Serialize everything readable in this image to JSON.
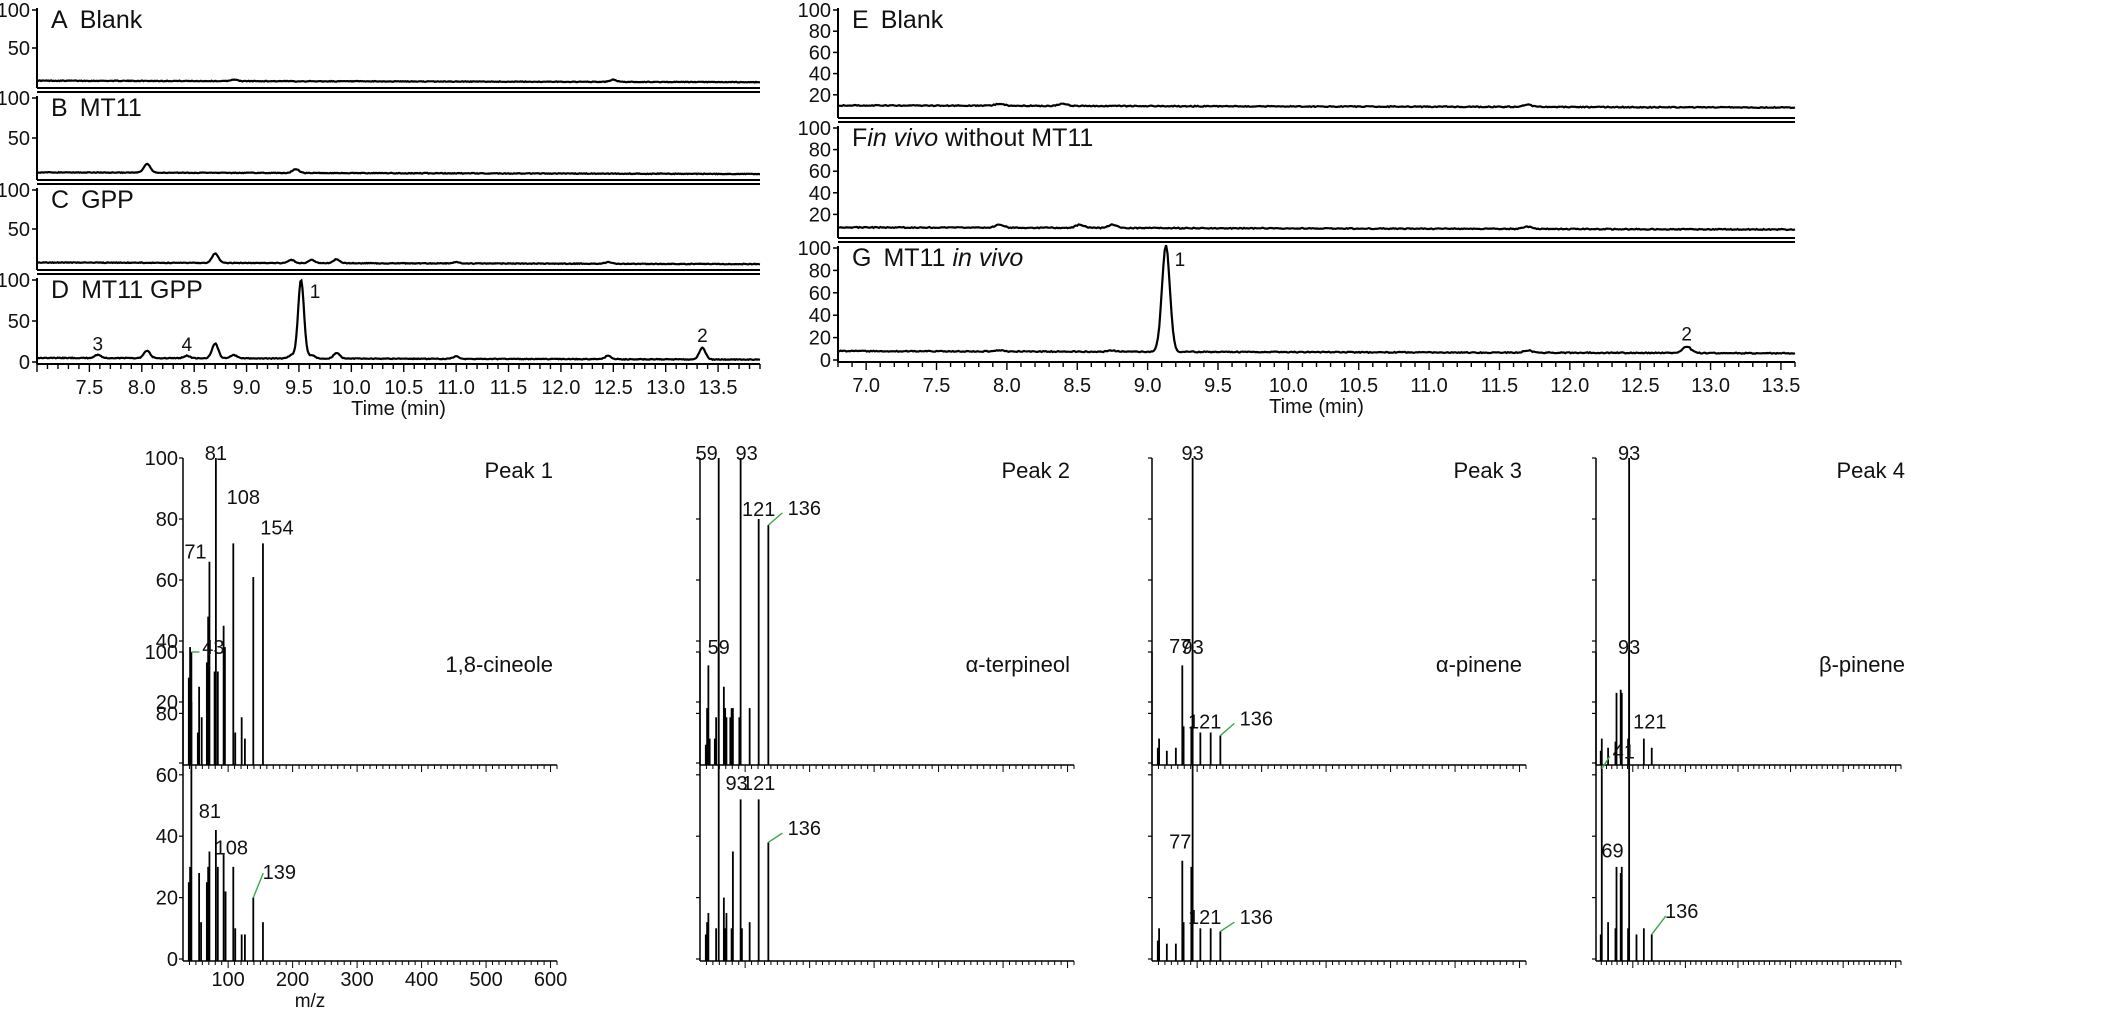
{
  "chart_data": [
    {
      "type": "line",
      "group": "chromatograms-left",
      "xlabel": "Time (min)",
      "xlim": [
        7.0,
        13.9
      ],
      "x_ticks": [
        "7.5",
        "8.0",
        "8.5",
        "9.0",
        "9.5",
        "10.0",
        "10.5",
        "11.0",
        "11.5",
        "12.0",
        "12.5",
        "13.0",
        "13.5"
      ],
      "panels": [
        {
          "letter": "A",
          "label": "Blank",
          "ylim": [
            0,
            100
          ],
          "y_ticks": [
            "100",
            "50"
          ],
          "baseline": 5,
          "peaks": [
            [
              8.88,
              2
            ],
            [
              12.5,
              3
            ]
          ]
        },
        {
          "letter": "B",
          "label": "MT11",
          "ylim": [
            0,
            100
          ],
          "y_ticks": [
            "100",
            "50"
          ],
          "baseline": 5,
          "peaks": [
            [
              8.05,
              11
            ],
            [
              9.47,
              5
            ]
          ]
        },
        {
          "letter": "C",
          "label": "GPP",
          "ylim": [
            0,
            100
          ],
          "y_ticks": [
            "100",
            "50"
          ],
          "baseline": 5,
          "peaks": [
            [
              8.7,
              12
            ],
            [
              9.43,
              4
            ],
            [
              9.62,
              4
            ],
            [
              9.86,
              5
            ],
            [
              11.0,
              2
            ],
            [
              12.45,
              2
            ]
          ]
        },
        {
          "letter": "D",
          "label": "MT11 GPP",
          "ylim": [
            0,
            100
          ],
          "y_ticks": [
            "100",
            "50",
            "0"
          ],
          "baseline": 3,
          "peaks": [
            [
              7.58,
              4
            ],
            [
              8.05,
              9
            ],
            [
              8.43,
              3
            ],
            [
              8.7,
              18
            ],
            [
              8.88,
              4
            ],
            [
              9.43,
              4
            ],
            [
              9.52,
              96
            ],
            [
              9.62,
              4
            ],
            [
              9.86,
              7
            ],
            [
              11.0,
              3
            ],
            [
              12.45,
              4
            ],
            [
              13.35,
              14
            ]
          ],
          "annotations": [
            {
              "text": "3",
              "x": 7.58
            },
            {
              "text": "4",
              "x": 8.43
            },
            {
              "text": "1",
              "x": 9.52
            },
            {
              "text": "2",
              "x": 13.35
            }
          ]
        }
      ]
    },
    {
      "type": "line",
      "group": "chromatograms-right",
      "xlabel": "Time (min)",
      "xlim": [
        6.8,
        13.6
      ],
      "x_ticks": [
        "7.0",
        "7.5",
        "8.0",
        "8.5",
        "9.0",
        "9.5",
        "10.0",
        "10.5",
        "11.0",
        "11.5",
        "12.0",
        "12.5",
        "13.0",
        "13.5"
      ],
      "panels": [
        {
          "letter": "E",
          "label": "Blank",
          "italic": "",
          "label_after": "",
          "ylim": [
            0,
            100
          ],
          "y_ticks": [
            "100",
            "80",
            "60",
            "40",
            "20"
          ],
          "baseline": 8,
          "peaks": [
            [
              7.95,
              2
            ],
            [
              8.4,
              2
            ],
            [
              11.7,
              2
            ]
          ]
        },
        {
          "letter": "F",
          "label": "",
          "italic": "in vivo",
          "label_after": " without MT11",
          "ylim": [
            0,
            100
          ],
          "y_ticks": [
            "100",
            "80",
            "60",
            "40",
            "20"
          ],
          "baseline": 6,
          "peaks": [
            [
              7.95,
              3
            ],
            [
              8.52,
              3
            ],
            [
              8.75,
              3
            ],
            [
              11.7,
              2
            ]
          ]
        },
        {
          "letter": "G",
          "label": "MT11 ",
          "italic": "in vivo",
          "label_after": "",
          "ylim": [
            0,
            100
          ],
          "y_ticks": [
            "100",
            "80",
            "60",
            "40",
            "20",
            "0"
          ],
          "baseline": 6,
          "peaks": [
            [
              7.95,
              1
            ],
            [
              8.75,
              1
            ],
            [
              9.13,
              95
            ],
            [
              11.7,
              2
            ],
            [
              12.83,
              6
            ]
          ],
          "annotations": [
            {
              "text": "1",
              "x": 9.13
            },
            {
              "text": "2",
              "x": 12.83
            }
          ]
        }
      ]
    },
    {
      "type": "bar",
      "group": "mass-spectra",
      "xlabel": "m/z",
      "xlim": [
        30,
        610
      ],
      "x_ticks": [
        "100",
        "200",
        "300",
        "400",
        "500",
        "600"
      ],
      "ylim": [
        0,
        100
      ],
      "spectra": [
        {
          "name": "Peak 1",
          "row": 0,
          "col": 0,
          "y_ticks": [
            "100",
            "80",
            "60",
            "40",
            "20"
          ],
          "bars": [
            [
              39,
              28
            ],
            [
              41,
              38
            ],
            [
              43,
              20
            ],
            [
              53,
              10
            ],
            [
              55,
              25
            ],
            [
              59,
              15
            ],
            [
              67,
              33
            ],
            [
              69,
              48
            ],
            [
              71,
              66
            ],
            [
              79,
              30
            ],
            [
              81,
              100
            ],
            [
              84,
              30
            ],
            [
              93,
              45
            ],
            [
              95,
              38
            ],
            [
              108,
              72
            ],
            [
              111,
              10
            ],
            [
              121,
              15
            ],
            [
              126,
              8
            ],
            [
              139,
              61
            ],
            [
              154,
              72
            ]
          ],
          "labels": [
            {
              "text": "81",
              "mz": 81
            },
            {
              "text": "71",
              "mz": 71
            },
            {
              "text": "108",
              "mz": 108
            },
            {
              "text": "154",
              "mz": 154
            }
          ]
        },
        {
          "name": "Peak 2",
          "row": 0,
          "col": 1,
          "y_ticks": [],
          "bars": [
            [
              39,
              6
            ],
            [
              41,
              18
            ],
            [
              43,
              32
            ],
            [
              45,
              8
            ],
            [
              53,
              8
            ],
            [
              55,
              15
            ],
            [
              59,
              100
            ],
            [
              67,
              25
            ],
            [
              69,
              18
            ],
            [
              71,
              15
            ],
            [
              77,
              15
            ],
            [
              79,
              18
            ],
            [
              81,
              18
            ],
            [
              91,
              15
            ],
            [
              93,
              100
            ],
            [
              107,
              18
            ],
            [
              121,
              80
            ],
            [
              136,
              78
            ]
          ],
          "labels": [
            {
              "text": "59",
              "mz": 59
            },
            {
              "text": "93",
              "mz": 93
            },
            {
              "text": "121",
              "mz": 121
            },
            {
              "text": "136",
              "mz": 136
            }
          ]
        },
        {
          "name": "Peak 3",
          "row": 0,
          "col": 2,
          "y_ticks": [],
          "bars": [
            [
              39,
              5
            ],
            [
              41,
              8
            ],
            [
              53,
              4
            ],
            [
              67,
              5
            ],
            [
              77,
              32
            ],
            [
              79,
              12
            ],
            [
              91,
              12
            ],
            [
              93,
              100
            ],
            [
              105,
              10
            ],
            [
              121,
              10
            ],
            [
              136,
              9
            ]
          ],
          "labels": [
            {
              "text": "93",
              "mz": 93
            },
            {
              "text": "77",
              "mz": 77
            },
            {
              "text": "121",
              "mz": 121
            },
            {
              "text": "136",
              "mz": 136
            }
          ]
        },
        {
          "name": "Peak 4",
          "row": 0,
          "col": 3,
          "y_ticks": [],
          "bars": [
            [
              39,
              4
            ],
            [
              41,
              8
            ],
            [
              53,
              5
            ],
            [
              67,
              7
            ],
            [
              69,
              23
            ],
            [
              77,
              24
            ],
            [
              79,
              23
            ],
            [
              91,
              8
            ],
            [
              93,
              100
            ],
            [
              121,
              8
            ],
            [
              136,
              5
            ]
          ],
          "labels": [
            {
              "text": "93",
              "mz": 93
            },
            {
              "text": "121",
              "mz": 121
            }
          ]
        },
        {
          "name": "1,8-cineole",
          "row": 1,
          "col": 0,
          "y_ticks": [
            "100",
            "80",
            "60",
            "40",
            "20",
            "0"
          ],
          "bars": [
            [
              39,
              25
            ],
            [
              41,
              30
            ],
            [
              43,
              100
            ],
            [
              55,
              28
            ],
            [
              58,
              12
            ],
            [
              67,
              25
            ],
            [
              69,
              30
            ],
            [
              71,
              35
            ],
            [
              81,
              42
            ],
            [
              84,
              30
            ],
            [
              93,
              34
            ],
            [
              96,
              22
            ],
            [
              108,
              30
            ],
            [
              111,
              10
            ],
            [
              121,
              8
            ],
            [
              126,
              8
            ],
            [
              139,
              20
            ],
            [
              154,
              12
            ]
          ],
          "labels": [
            {
              "text": "43",
              "mz": 43
            },
            {
              "text": "81",
              "mz": 81
            },
            {
              "text": "108",
              "mz": 108
            },
            {
              "text": "139",
              "mz": 139
            }
          ]
        },
        {
          "name": "α-terpineol",
          "row": 1,
          "col": 1,
          "y_ticks": [],
          "bars": [
            [
              39,
              8
            ],
            [
              41,
              12
            ],
            [
              43,
              15
            ],
            [
              55,
              10
            ],
            [
              59,
              100
            ],
            [
              67,
              20
            ],
            [
              69,
              10
            ],
            [
              71,
              15
            ],
            [
              79,
              10
            ],
            [
              81,
              35
            ],
            [
              93,
              52
            ],
            [
              95,
              10
            ],
            [
              107,
              12
            ],
            [
              121,
              52
            ],
            [
              136,
              38
            ]
          ],
          "labels": [
            {
              "text": "59",
              "mz": 59
            },
            {
              "text": "93",
              "mz": 93
            },
            {
              "text": "121",
              "mz": 121
            },
            {
              "text": "136",
              "mz": 136
            }
          ]
        },
        {
          "name": "α-pinene",
          "row": 1,
          "col": 2,
          "y_ticks": [],
          "bars": [
            [
              39,
              6
            ],
            [
              41,
              10
            ],
            [
              53,
              5
            ],
            [
              67,
              5
            ],
            [
              77,
              32
            ],
            [
              79,
              12
            ],
            [
              91,
              30
            ],
            [
              93,
              100
            ],
            [
              105,
              10
            ],
            [
              121,
              10
            ],
            [
              136,
              9
            ]
          ],
          "labels": [
            {
              "text": "93",
              "mz": 93
            },
            {
              "text": "77",
              "mz": 77
            },
            {
              "text": "121",
              "mz": 121
            },
            {
              "text": "136",
              "mz": 136
            }
          ]
        },
        {
          "name": "β-pinene",
          "row": 1,
          "col": 3,
          "y_ticks": [],
          "bars": [
            [
              39,
              8
            ],
            [
              41,
              62
            ],
            [
              53,
              12
            ],
            [
              67,
              10
            ],
            [
              69,
              30
            ],
            [
              77,
              28
            ],
            [
              79,
              30
            ],
            [
              91,
              10
            ],
            [
              93,
              100
            ],
            [
              107,
              8
            ],
            [
              121,
              10
            ],
            [
              136,
              8
            ]
          ],
          "labels": [
            {
              "text": "93",
              "mz": 93
            },
            {
              "text": "41",
              "mz": 41
            },
            {
              "text": "69",
              "mz": 69
            },
            {
              "text": "136",
              "mz": 136
            }
          ]
        }
      ]
    }
  ]
}
